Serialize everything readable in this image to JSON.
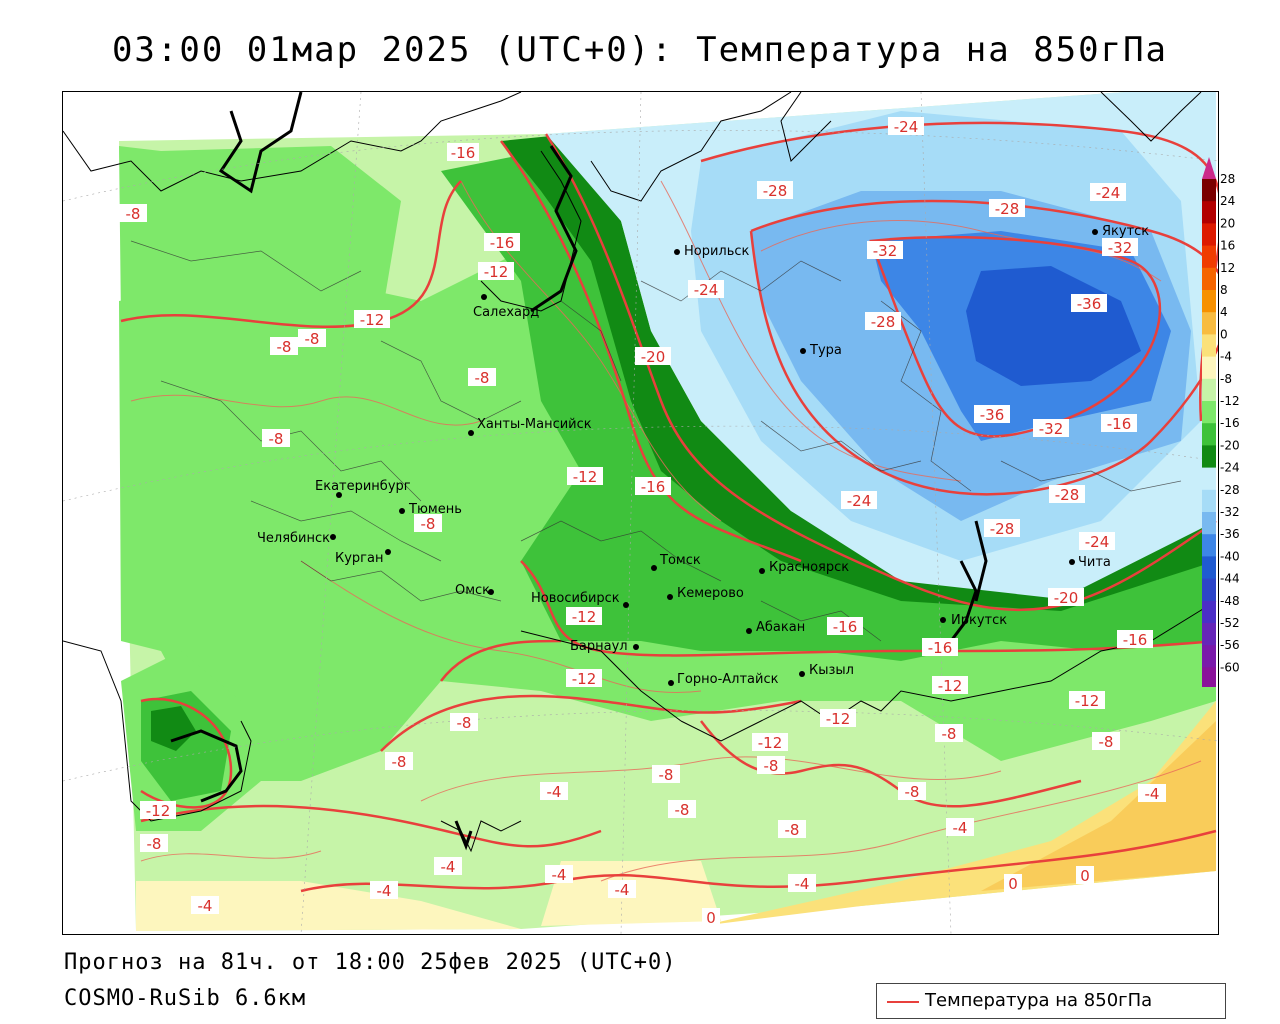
{
  "title": "03:00 01мар 2025 (UTC+0): Температура на 850гПа",
  "footer": {
    "forecast": "Прогноз на 81ч. от 18:00 25фев 2025 (UTC+0)",
    "model": "COSMO-RuSib 6.6км"
  },
  "legend": {
    "label": "Температура на 850гПа",
    "line_color": "#e8403c"
  },
  "colorbar": {
    "ticks": [
      "28",
      "24",
      "20",
      "16",
      "12",
      "8",
      "4",
      "0",
      "-4",
      "-8",
      "-12",
      "-16",
      "-20",
      "-24",
      "-28",
      "-32",
      "-36",
      "-40",
      "-44",
      "-48",
      "-52",
      "-56",
      "-60"
    ],
    "colors": [
      "#7a0000",
      "#b20000",
      "#dd1b00",
      "#f03c00",
      "#f56500",
      "#f79100",
      "#f8bc40",
      "#fbe17a",
      "#fdf6be",
      "#c6f4a8",
      "#7ee86a",
      "#3ec23a",
      "#118a14",
      "#c9eefa",
      "#a6dcf7",
      "#78b9f0",
      "#3d86e6",
      "#1f5bd0",
      "#2d45c8",
      "#4b2fc6",
      "#6626b8",
      "#7a1aaa",
      "#8a129a"
    ],
    "top_arrow_color": "#cc2a8a",
    "bottom_arrow_color": "#9a1090"
  },
  "cities": [
    {
      "name": "Норильск"
    },
    {
      "name": "Якутск"
    },
    {
      "name": "Салехард"
    },
    {
      "name": "Тура"
    },
    {
      "name": "Ханты-Мансийск"
    },
    {
      "name": "Екатеринбург"
    },
    {
      "name": "Тюмень"
    },
    {
      "name": "Челябинск"
    },
    {
      "name": "Курган"
    },
    {
      "name": "Омск"
    },
    {
      "name": "Томск"
    },
    {
      "name": "Красноярск"
    },
    {
      "name": "Новосибирск"
    },
    {
      "name": "Кемерово"
    },
    {
      "name": "Абакан"
    },
    {
      "name": "Иркутск"
    },
    {
      "name": "Барнаул"
    },
    {
      "name": "Кызыл"
    },
    {
      "name": "Горно-Алтайск"
    },
    {
      "name": "Чита"
    }
  ],
  "contour_labels": [
    "-16",
    "-24",
    "-28",
    "-24",
    "-28",
    "-32",
    "-32",
    "-36",
    "-8",
    "-16",
    "-12",
    "-12",
    "-8",
    "-8",
    "-8",
    "-24",
    "-20",
    "-28",
    "-8",
    "-16",
    "-36",
    "-32",
    "-12",
    "-16",
    "-24",
    "-28",
    "-8",
    "-28",
    "-24",
    "-20",
    "-12",
    "-16",
    "-16",
    "-12",
    "-16",
    "-12",
    "-8",
    "-12",
    "-12",
    "-8",
    "-8",
    "-12",
    "-8",
    "-8",
    "-4",
    "-8",
    "-8",
    "-8",
    "-4",
    "-4",
    "-8",
    "-12",
    "-8",
    "-4",
    "-4",
    "-4",
    "-4",
    "-4",
    "-4",
    "0",
    "0",
    "0"
  ]
}
